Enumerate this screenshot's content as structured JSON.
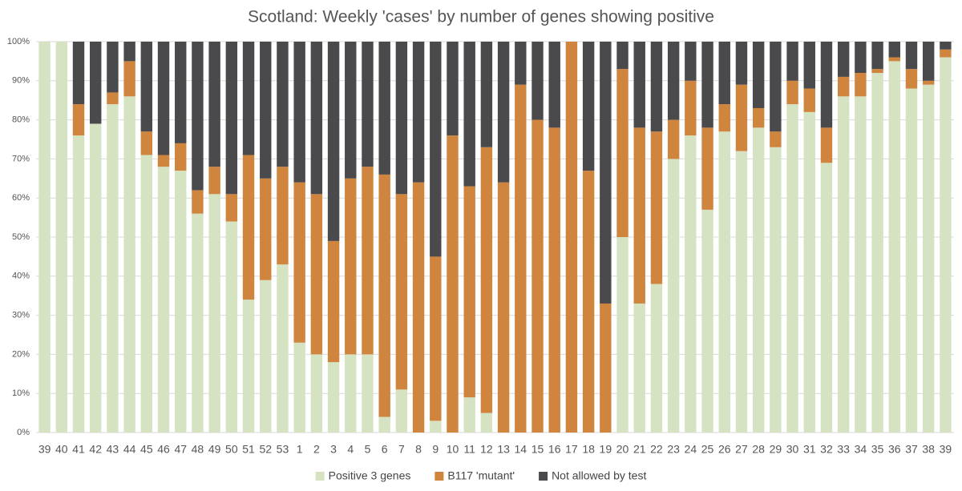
{
  "chart_data": {
    "type": "stacked_bar_percent",
    "title": "Scotland: Weekly 'cases' by number of genes showing positive",
    "categories": [
      "39",
      "40",
      "41",
      "42",
      "43",
      "44",
      "45",
      "46",
      "47",
      "48",
      "49",
      "50",
      "51",
      "52",
      "53",
      "1",
      "2",
      "3",
      "4",
      "5",
      "6",
      "7",
      "8",
      "9",
      "10",
      "11",
      "12",
      "13",
      "14",
      "15",
      "16",
      "17",
      "18",
      "19",
      "20",
      "21",
      "22",
      "23",
      "24",
      "25",
      "26",
      "27",
      "28",
      "29",
      "30",
      "31",
      "32",
      "33",
      "34",
      "35",
      "36",
      "37",
      "38",
      "39"
    ],
    "series": [
      {
        "name": "Positive 3 genes",
        "color": "#d5e3c3",
        "values": [
          100,
          100,
          76,
          79,
          84,
          86,
          71,
          68,
          67,
          56,
          61,
          54,
          34,
          39,
          43,
          23,
          20,
          18,
          20,
          20,
          4,
          11,
          0,
          3,
          0,
          9,
          5,
          0,
          0,
          0,
          0,
          0,
          0,
          0,
          50,
          33,
          38,
          70,
          76,
          57,
          77,
          72,
          78,
          73,
          84,
          82,
          69,
          86,
          86,
          92,
          95,
          88,
          89,
          96
        ]
      },
      {
        "name": "B117 'mutant'",
        "color": "#d0853f",
        "values": [
          0,
          0,
          8,
          0,
          3,
          9,
          6,
          3,
          7,
          6,
          7,
          7,
          37,
          26,
          25,
          41,
          41,
          31,
          45,
          48,
          62,
          50,
          64,
          42,
          76,
          54,
          68,
          64,
          89,
          80,
          78,
          100,
          67,
          33,
          43,
          45,
          39,
          10,
          14,
          21,
          7,
          17,
          5,
          4,
          6,
          6,
          9,
          5,
          6,
          1,
          1,
          5,
          1,
          2
        ]
      },
      {
        "name": "Not allowed by test",
        "color": "#4a494b",
        "values": [
          0,
          0,
          16,
          21,
          13,
          5,
          23,
          29,
          26,
          38,
          32,
          39,
          29,
          35,
          32,
          36,
          39,
          51,
          35,
          32,
          34,
          39,
          36,
          55,
          24,
          37,
          27,
          36,
          11,
          20,
          22,
          0,
          33,
          67,
          7,
          22,
          23,
          20,
          10,
          22,
          16,
          11,
          17,
          23,
          10,
          12,
          22,
          9,
          8,
          7,
          4,
          7,
          10,
          2
        ]
      }
    ],
    "ylim": [
      0,
      100
    ],
    "yticks": [
      {
        "value": 0,
        "label": "0%"
      },
      {
        "value": 10,
        "label": "10%"
      },
      {
        "value": 20,
        "label": "20%"
      },
      {
        "value": 30,
        "label": "30%"
      },
      {
        "value": 40,
        "label": "40%"
      },
      {
        "value": 50,
        "label": "50%"
      },
      {
        "value": 60,
        "label": "60%"
      },
      {
        "value": 70,
        "label": "70%"
      },
      {
        "value": 80,
        "label": "80%"
      },
      {
        "value": 90,
        "label": "90%"
      },
      {
        "value": 100,
        "label": "100%"
      }
    ],
    "grid": true,
    "legend": "bottom"
  }
}
